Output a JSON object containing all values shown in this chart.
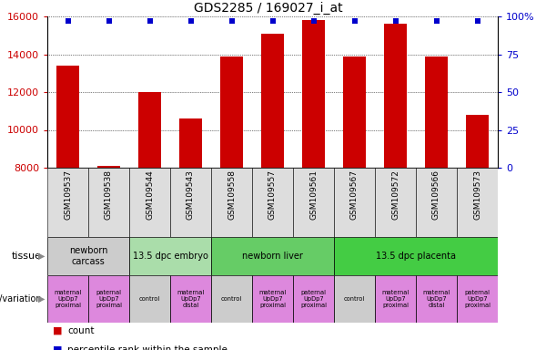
{
  "title": "GDS2285 / 169027_i_at",
  "samples": [
    "GSM109537",
    "GSM109538",
    "GSM109544",
    "GSM109543",
    "GSM109558",
    "GSM109557",
    "GSM109561",
    "GSM109567",
    "GSM109572",
    "GSM109566",
    "GSM109573"
  ],
  "counts": [
    13400,
    8100,
    12000,
    10600,
    13900,
    15100,
    15800,
    13900,
    15600,
    13900,
    10800
  ],
  "percentile_ranks": [
    100,
    100,
    100,
    100,
    100,
    100,
    100,
    100,
    100,
    100,
    100
  ],
  "ylim_left": [
    8000,
    16000
  ],
  "yticks_left": [
    8000,
    10000,
    12000,
    14000,
    16000
  ],
  "ylim_right": [
    0,
    100
  ],
  "yticks_right": [
    0,
    25,
    50,
    75,
    100
  ],
  "bar_color": "#cc0000",
  "percentile_color": "#0000cc",
  "tissue_row": [
    {
      "label": "newborn\ncarcass",
      "span": [
        0,
        2
      ],
      "color": "#cccccc"
    },
    {
      "label": "13.5 dpc embryo",
      "span": [
        2,
        4
      ],
      "color": "#aaddaa"
    },
    {
      "label": "newborn liver",
      "span": [
        4,
        7
      ],
      "color": "#66cc66"
    },
    {
      "label": "13.5 dpc placenta",
      "span": [
        7,
        11
      ],
      "color": "#44cc44"
    }
  ],
  "genotype_row": [
    {
      "label": "maternal\nUpDp7\nproximal",
      "span": [
        0,
        1
      ],
      "color": "#dd88dd"
    },
    {
      "label": "paternal\nUpDp7\nproximal",
      "span": [
        1,
        2
      ],
      "color": "#dd88dd"
    },
    {
      "label": "control",
      "span": [
        2,
        3
      ],
      "color": "#cccccc"
    },
    {
      "label": "maternal\nUpDp7\ndistal",
      "span": [
        3,
        4
      ],
      "color": "#dd88dd"
    },
    {
      "label": "control",
      "span": [
        4,
        5
      ],
      "color": "#cccccc"
    },
    {
      "label": "maternal\nUpDp7\nproximal",
      "span": [
        5,
        6
      ],
      "color": "#dd88dd"
    },
    {
      "label": "paternal\nUpDp7\nproximal",
      "span": [
        6,
        7
      ],
      "color": "#dd88dd"
    },
    {
      "label": "control",
      "span": [
        7,
        8
      ],
      "color": "#cccccc"
    },
    {
      "label": "maternal\nUpDp7\nproximal",
      "span": [
        8,
        9
      ],
      "color": "#dd88dd"
    },
    {
      "label": "maternal\nUpDp7\ndistal",
      "span": [
        9,
        10
      ],
      "color": "#dd88dd"
    },
    {
      "label": "paternal\nUpDp7\nproximal",
      "span": [
        10,
        11
      ],
      "color": "#dd88dd"
    }
  ]
}
